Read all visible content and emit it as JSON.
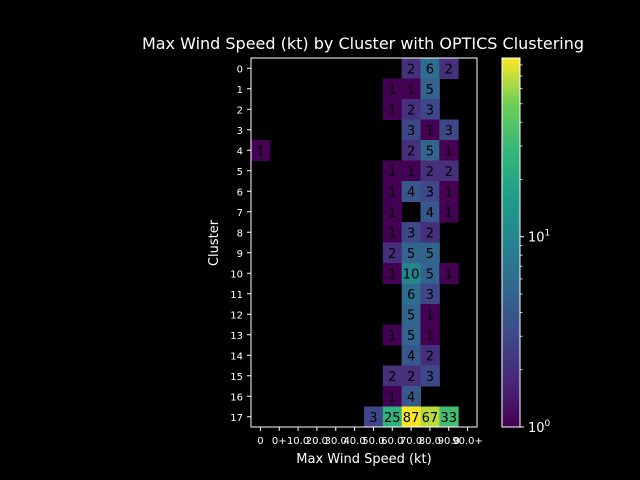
{
  "chart_data": {
    "type": "heatmap",
    "title": "Max Wind Speed (kt) by Cluster with OPTICS Clustering",
    "xlabel": "Max Wind Speed (kt)",
    "ylabel": "Cluster",
    "x_categories": [
      "0",
      "0+",
      "10.0",
      "20.0",
      "30.0",
      "40.0",
      "50.0",
      "60.0",
      "70.0",
      "80.0",
      "90.0",
      "90.0+"
    ],
    "x_tick_labels": [
      "0",
      "0+",
      "10.0",
      "20.0",
      "30.0",
      "40.0",
      "50.0",
      "60.0",
      "70.0",
      "80.0",
      "90.0",
      "90.0+"
    ],
    "y_categories": [
      "0",
      "1",
      "2",
      "3",
      "4",
      "5",
      "6",
      "7",
      "8",
      "9",
      "10",
      "11",
      "12",
      "13",
      "14",
      "15",
      "16",
      "17"
    ],
    "color_scale": "log",
    "colormap": "viridis",
    "colorbar": {
      "min": 1,
      "max": 87,
      "tick_labels": [
        "10^0",
        "10^1"
      ],
      "tick_values": [
        1,
        10
      ]
    },
    "values": [
      [
        null,
        null,
        null,
        null,
        null,
        null,
        null,
        null,
        2,
        6,
        2,
        null
      ],
      [
        null,
        null,
        null,
        null,
        null,
        null,
        null,
        1,
        1,
        5,
        null,
        null
      ],
      [
        null,
        null,
        null,
        null,
        null,
        null,
        null,
        1,
        2,
        3,
        null,
        null
      ],
      [
        null,
        null,
        null,
        null,
        null,
        null,
        null,
        null,
        3,
        1,
        3,
        null
      ],
      [
        1,
        null,
        null,
        null,
        null,
        null,
        null,
        null,
        2,
        5,
        1,
        null
      ],
      [
        null,
        null,
        null,
        null,
        null,
        null,
        null,
        1,
        1,
        2,
        2,
        null
      ],
      [
        null,
        null,
        null,
        null,
        null,
        null,
        null,
        1,
        4,
        3,
        1,
        null
      ],
      [
        null,
        null,
        null,
        null,
        null,
        null,
        null,
        1,
        null,
        4,
        1,
        null
      ],
      [
        null,
        null,
        null,
        null,
        null,
        null,
        null,
        1,
        3,
        2,
        null,
        null
      ],
      [
        null,
        null,
        null,
        null,
        null,
        null,
        null,
        2,
        5,
        5,
        null,
        null
      ],
      [
        null,
        null,
        null,
        null,
        null,
        null,
        null,
        1,
        10,
        5,
        1,
        null
      ],
      [
        null,
        null,
        null,
        null,
        null,
        null,
        null,
        null,
        6,
        3,
        null,
        null
      ],
      [
        null,
        null,
        null,
        null,
        null,
        null,
        null,
        null,
        5,
        1,
        null,
        null
      ],
      [
        null,
        null,
        null,
        null,
        null,
        null,
        null,
        1,
        5,
        1,
        null,
        null
      ],
      [
        null,
        null,
        null,
        null,
        null,
        null,
        null,
        null,
        4,
        2,
        null,
        null
      ],
      [
        null,
        null,
        null,
        null,
        null,
        null,
        null,
        2,
        2,
        3,
        null,
        null
      ],
      [
        null,
        null,
        null,
        null,
        null,
        null,
        null,
        1,
        4,
        null,
        null,
        null
      ],
      [
        null,
        null,
        null,
        null,
        null,
        null,
        3,
        25,
        87,
        67,
        33,
        null
      ]
    ]
  }
}
